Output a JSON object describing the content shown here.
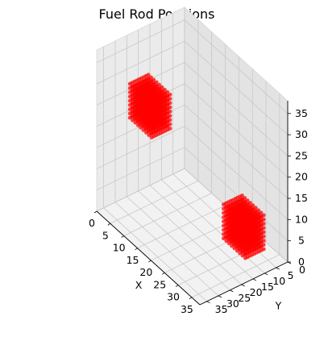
{
  "chart_data": {
    "type": "scatter",
    "projection": "3d",
    "title": "Fuel Rod Positions",
    "xlabel": "X",
    "ylabel": "Y",
    "zlabel": "",
    "xlim": [
      0,
      38
    ],
    "ylim": [
      0,
      38
    ],
    "zlim": [
      0,
      38
    ],
    "xticks": [
      0,
      5,
      10,
      15,
      20,
      25,
      30,
      35
    ],
    "yticks": [
      0,
      5,
      10,
      15,
      20,
      25,
      30,
      35
    ],
    "zticks": [
      0,
      5,
      10,
      15,
      20,
      25,
      30,
      35
    ],
    "grid": true,
    "point_color": "#ff0000",
    "clusters": [
      {
        "x_range": [
          2,
          10
        ],
        "y_range": [
          18,
          26
        ],
        "z_range": [
          20,
          28
        ]
      },
      {
        "x_range": [
          28,
          36
        ],
        "y_range": [
          8,
          16
        ],
        "z_range": [
          4,
          12
        ]
      }
    ]
  }
}
